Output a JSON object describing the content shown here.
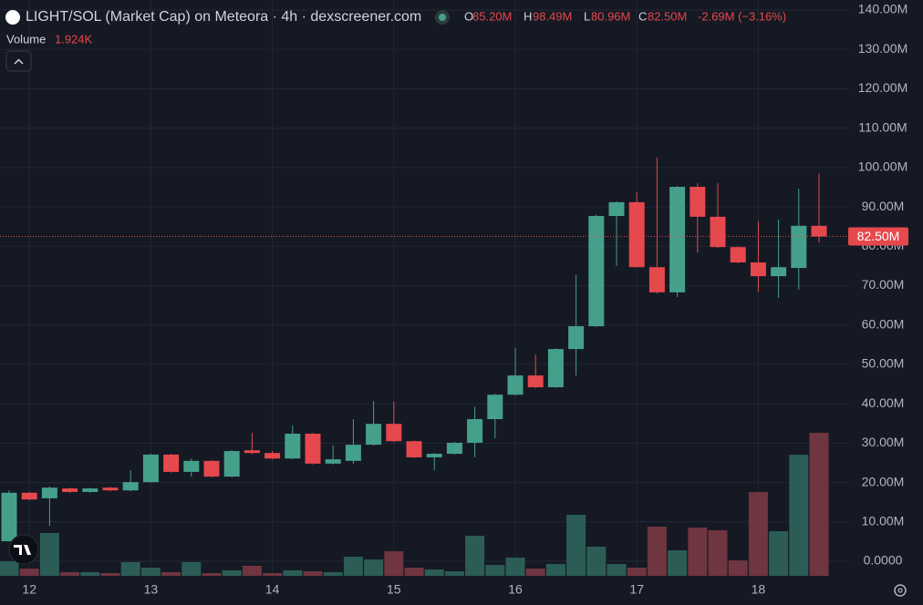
{
  "chart_data": {
    "type": "candlestick",
    "title": "LIGHT/SOL (Market Cap) on Meteora · 4h · dexscreener.com",
    "header": [
      {
        "key": "O",
        "label": "85.20M"
      },
      {
        "key": "H",
        "label": "98.49M"
      },
      {
        "key": "L",
        "label": "80.96M"
      },
      {
        "key": "C",
        "label": "82.50M"
      }
    ],
    "change_label": "-2.69M (−3.16%)",
    "volume_title": "Volume",
    "volume_label": "1.924K",
    "last_price_label": "82.50M",
    "categories": [
      null,
      "12",
      null,
      null,
      null,
      null,
      null,
      "13",
      null,
      null,
      null,
      null,
      null,
      "14",
      null,
      null,
      null,
      null,
      null,
      "15",
      null,
      null,
      null,
      null,
      null,
      "16",
      null,
      null,
      null,
      null,
      null,
      "17",
      null,
      null,
      null,
      null,
      null,
      "18",
      null,
      null,
      null
    ],
    "open": [
      5100000,
      17400000,
      16000000,
      18500000,
      17600000,
      18700000,
      18000000,
      20100000,
      27100000,
      22700000,
      25500000,
      21500000,
      28200000,
      27500000,
      26100000,
      32400000,
      24800000,
      25500000,
      29600000,
      34900000,
      30500000,
      26400000,
      27300000,
      30100000,
      36100000,
      42300000,
      47200000,
      44200000,
      53900000,
      59700000,
      87700000,
      91200000,
      74700000,
      68300000,
      95100000,
      87500000,
      79800000,
      75900000,
      72400000,
      74500000,
      85200000
    ],
    "high": [
      18000000,
      17600000,
      19000000,
      18700000,
      18700000,
      18900000,
      23100000,
      27300000,
      27300000,
      26100000,
      25700000,
      28200000,
      32600000,
      28000000,
      34500000,
      32600000,
      29400000,
      36100000,
      40700000,
      40500000,
      30700000,
      27500000,
      30300000,
      39300000,
      42500000,
      54100000,
      52500000,
      54100000,
      72700000,
      88000000,
      91400000,
      93700000,
      102500000,
      95300000,
      96000000,
      96000000,
      80000000,
      86300000,
      86800000,
      94600000,
      98490000
    ],
    "low": [
      5000000,
      15500000,
      9000000,
      17400000,
      17400000,
      17800000,
      17800000,
      20000000,
      22500000,
      21500000,
      21300000,
      21300000,
      27200000,
      25900000,
      25900000,
      24600000,
      24600000,
      24800000,
      29400000,
      30300000,
      26200000,
      23100000,
      27100000,
      26400000,
      31200000,
      42100000,
      44000000,
      44000000,
      47200000,
      59500000,
      75000000,
      74700000,
      68000000,
      67100000,
      78400000,
      79600000,
      75700000,
      68500000,
      66900000,
      69000000,
      80960000
    ],
    "close": [
      17400000,
      15700000,
      18700000,
      17600000,
      18500000,
      18000000,
      20100000,
      27100000,
      22700000,
      25500000,
      21500000,
      28000000,
      27500000,
      26100000,
      32400000,
      24800000,
      25900000,
      29600000,
      34900000,
      30500000,
      26400000,
      27300000,
      30100000,
      36100000,
      42300000,
      47200000,
      44200000,
      53900000,
      59700000,
      87700000,
      91200000,
      74700000,
      68300000,
      95100000,
      87500000,
      79800000,
      75900000,
      72400000,
      74700000,
      85200000,
      82500000
    ],
    "volume": [
      196,
      98,
      576,
      49,
      49,
      37,
      184,
      110,
      49,
      184,
      37,
      74,
      135,
      37,
      74,
      61,
      49,
      257,
      220,
      331,
      110,
      86,
      61,
      539,
      147,
      245,
      98,
      159,
      821,
      392,
      159,
      110,
      662,
      343,
      649,
      613,
      208,
      1127,
      600,
      1629,
      1924
    ],
    "up_color": "#45a08b",
    "down_color": "#e5484d",
    "volume_up_color": "#2b5d56",
    "volume_down_color": "#6f3540",
    "ylim": [
      -3700000,
      142550000
    ],
    "yticks": [
      {
        "value": 0,
        "label": "0.0000"
      },
      {
        "value": 10000000,
        "label": "10.00M"
      },
      {
        "value": 20000000,
        "label": "20.00M"
      },
      {
        "value": 30000000,
        "label": "30.00M"
      },
      {
        "value": 40000000,
        "label": "40.00M"
      },
      {
        "value": 50000000,
        "label": "50.00M"
      },
      {
        "value": 60000000,
        "label": "60.00M"
      },
      {
        "value": 70000000,
        "label": "70.00M"
      },
      {
        "value": 80000000,
        "label": "80.00M"
      },
      {
        "value": 90000000,
        "label": "90.00M"
      },
      {
        "value": 100000000,
        "label": "100.00M"
      },
      {
        "value": 110000000,
        "label": "110.00M"
      },
      {
        "value": 120000000,
        "label": "120.00M"
      },
      {
        "value": 130000000,
        "label": "130.00M"
      },
      {
        "value": 140000000,
        "label": "140.00M"
      }
    ],
    "grid": true
  }
}
